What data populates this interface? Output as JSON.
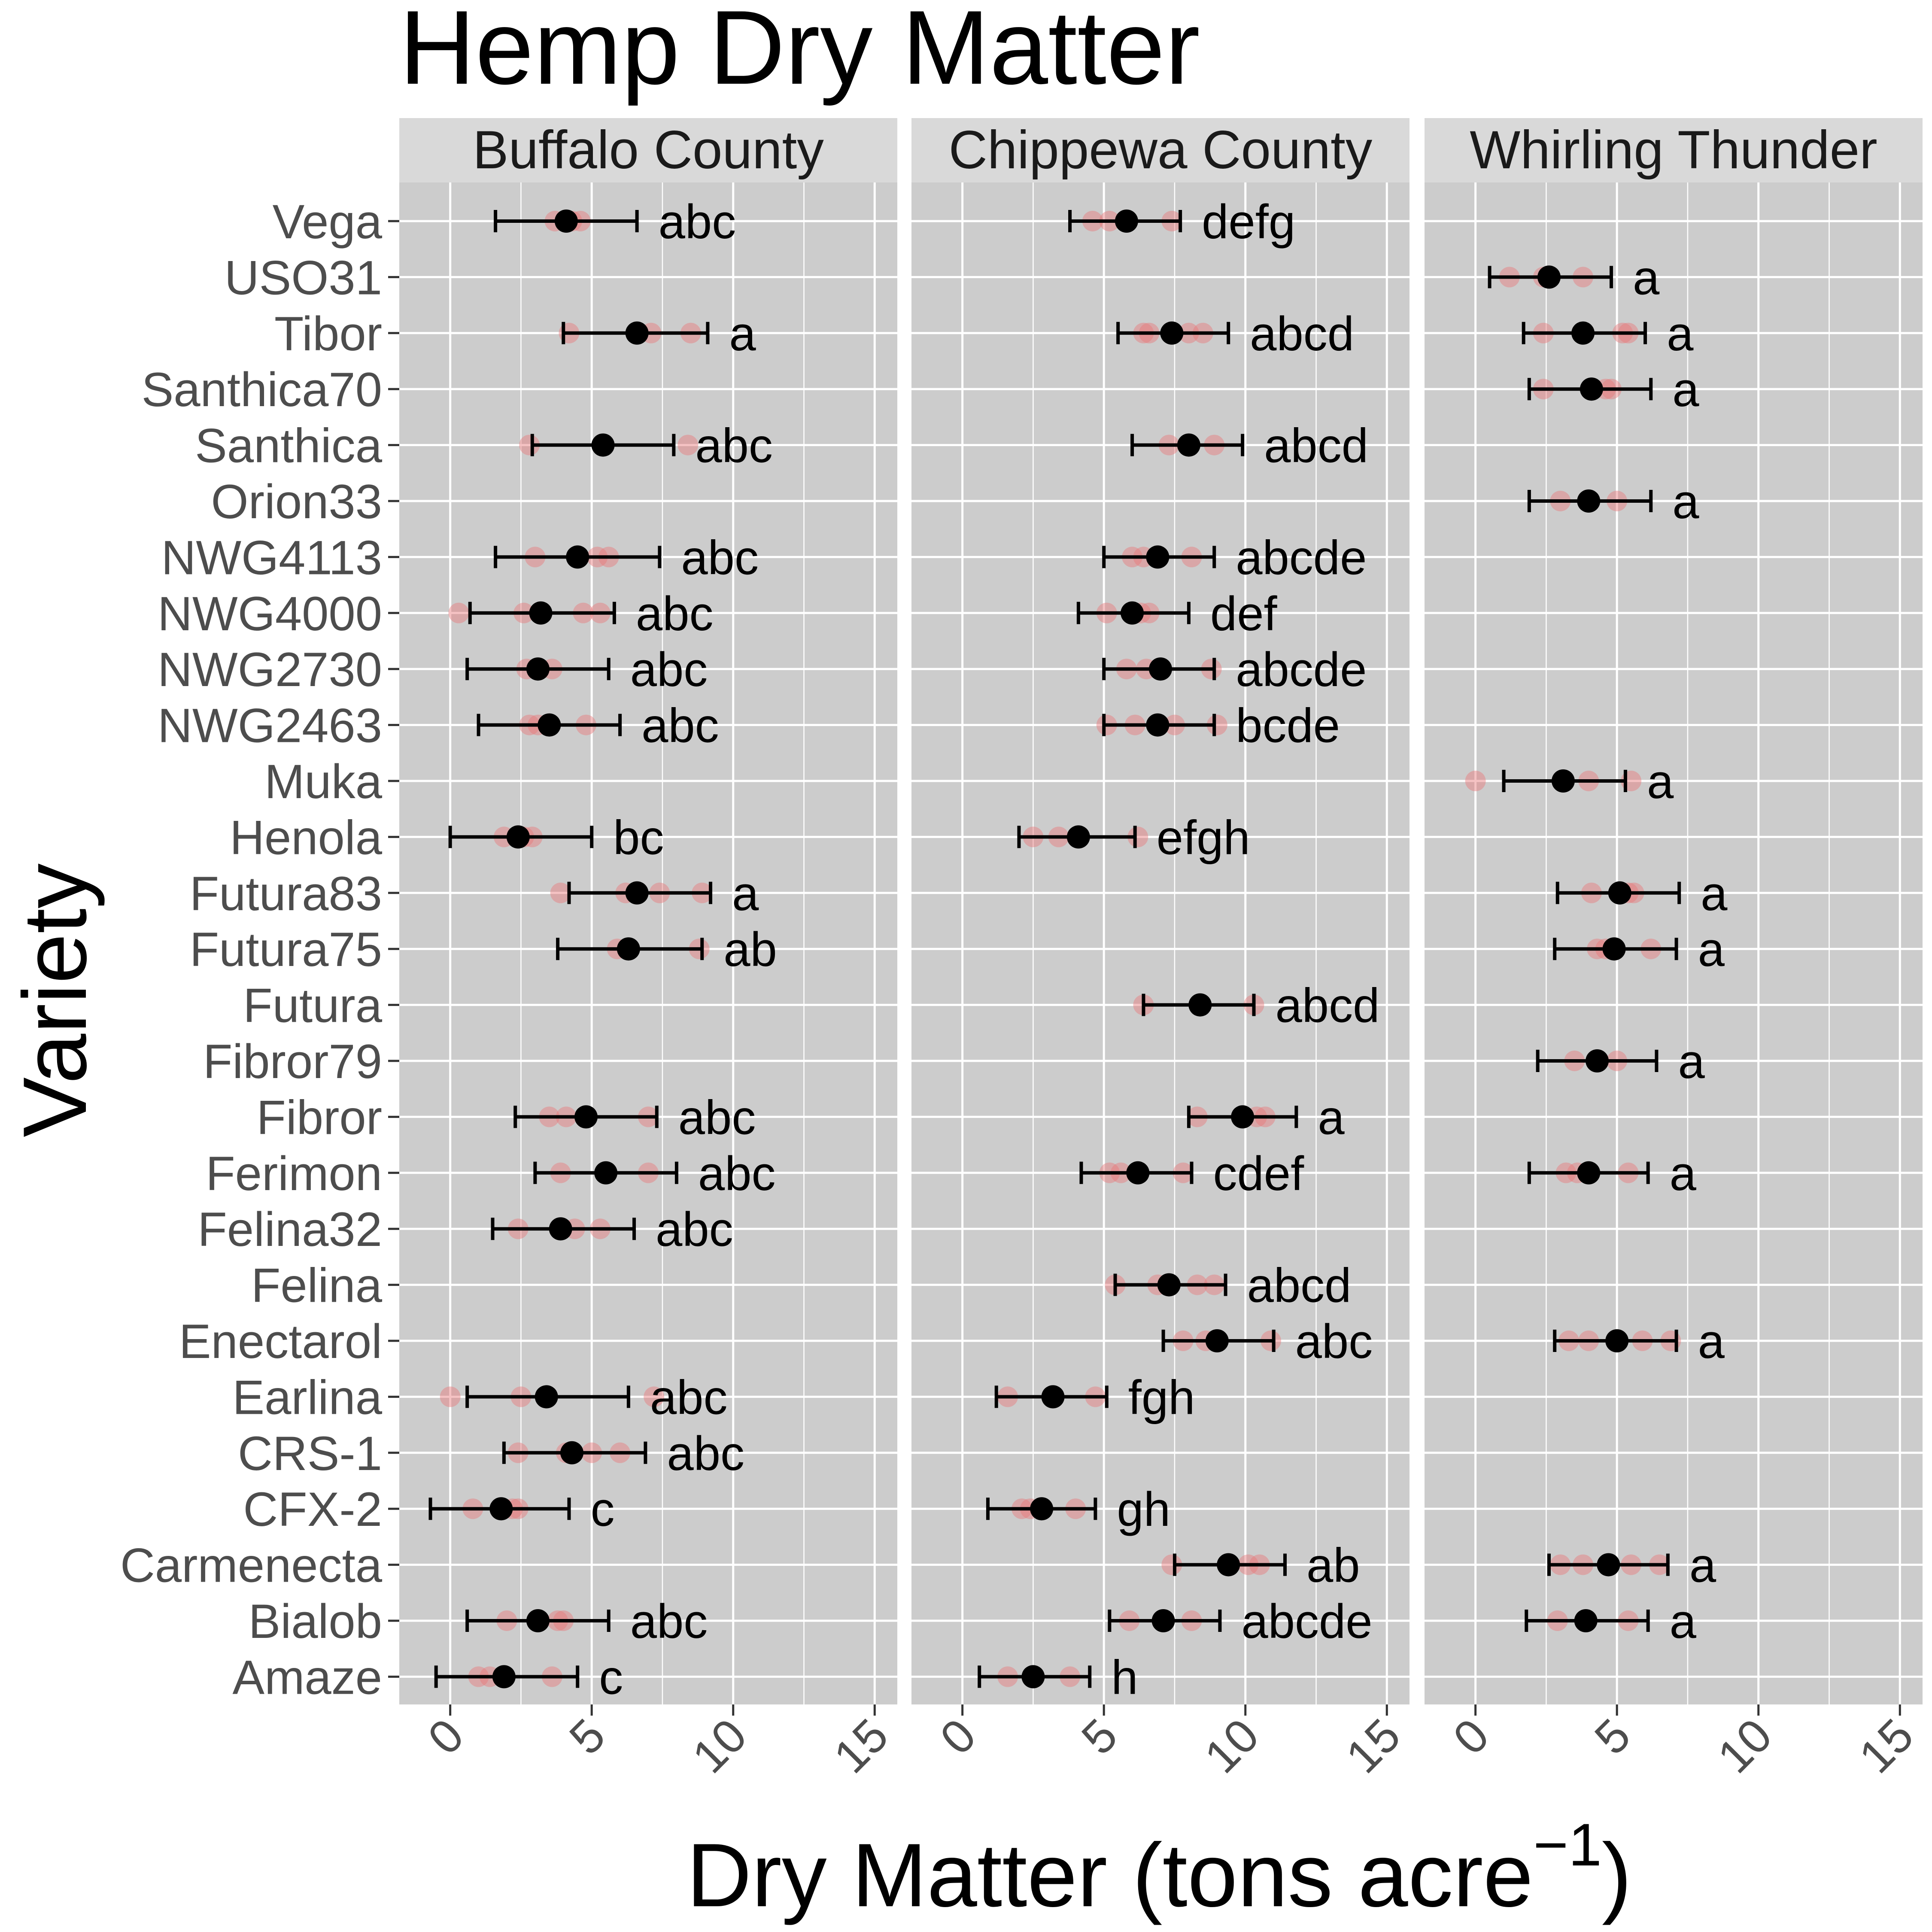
{
  "chart_data": {
    "type": "scatter",
    "title": "Hemp Dry Matter",
    "xlabel": "Dry Matter (tons acre",
    "xlabel_superscript": "−1",
    "xlabel_close": ")",
    "ylabel": "Variety",
    "xlim": [
      -1.8,
      15.8
    ],
    "x_ticks": [
      0,
      5,
      10,
      15
    ],
    "grid": true,
    "colors": {
      "panel_bg": "#cccccc",
      "strip_bg": "#d9d9d9",
      "grid": "#ffffff",
      "mean_point": "#000000",
      "replicate_point": "#e8787a"
    },
    "categories": [
      "Vega",
      "USO31",
      "Tibor",
      "Santhica70",
      "Santhica",
      "Orion33",
      "NWG4113",
      "NWG4000",
      "NWG2730",
      "NWG2463",
      "Muka",
      "Henola",
      "Futura83",
      "Futura75",
      "Futura",
      "Fibror79",
      "Fibror",
      "Ferimon",
      "Felina32",
      "Felina",
      "Enectarol",
      "Earlina",
      "CRS-1",
      "CFX-2",
      "Carmenecta",
      "Bialob",
      "Amaze"
    ],
    "panels": [
      {
        "name": "Buffalo County",
        "entries": [
          {
            "variety": "Vega",
            "mean": 4.1,
            "low": 1.6,
            "high": 6.6,
            "letters": "abc",
            "reps": [
              3.7,
              4.3,
              4.6
            ]
          },
          {
            "variety": "Tibor",
            "mean": 6.6,
            "low": 4.0,
            "high": 9.1,
            "letters": "a",
            "reps": [
              4.2,
              7.1,
              8.5
            ]
          },
          {
            "variety": "Santhica",
            "mean": 5.4,
            "low": 2.9,
            "high": 7.9,
            "letters": "abc",
            "reps": [
              2.8,
              8.4
            ]
          },
          {
            "variety": "NWG4113",
            "mean": 4.5,
            "low": 1.6,
            "high": 7.4,
            "letters": "abc",
            "reps": [
              3.0,
              5.2,
              5.6
            ]
          },
          {
            "variety": "NWG4000",
            "mean": 3.2,
            "low": 0.7,
            "high": 5.8,
            "letters": "abc",
            "reps": [
              0.3,
              2.6,
              4.7,
              5.3
            ]
          },
          {
            "variety": "NWG2730",
            "mean": 3.1,
            "low": 0.6,
            "high": 5.6,
            "letters": "abc",
            "reps": [
              2.7,
              3.6
            ]
          },
          {
            "variety": "NWG2463",
            "mean": 3.5,
            "low": 1.0,
            "high": 6.0,
            "letters": "abc",
            "reps": [
              2.8,
              3.1,
              4.8
            ]
          },
          {
            "variety": "Henola",
            "mean": 2.4,
            "low": 0.0,
            "high": 5.0,
            "letters": "bc",
            "reps": [
              1.9,
              2.6,
              2.9
            ]
          },
          {
            "variety": "Futura83",
            "mean": 6.6,
            "low": 4.2,
            "high": 9.2,
            "letters": "a",
            "reps": [
              3.9,
              6.2,
              7.4,
              8.9
            ]
          },
          {
            "variety": "Futura75",
            "mean": 6.3,
            "low": 3.8,
            "high": 8.9,
            "letters": "ab",
            "reps": [
              5.9,
              8.8
            ]
          },
          {
            "variety": "Fibror",
            "mean": 4.8,
            "low": 2.3,
            "high": 7.3,
            "letters": "abc",
            "reps": [
              3.5,
              4.1,
              7.0
            ]
          },
          {
            "variety": "Ferimon",
            "mean": 5.5,
            "low": 3.0,
            "high": 8.0,
            "letters": "abc",
            "reps": [
              3.9,
              7.0
            ]
          },
          {
            "variety": "Felina32",
            "mean": 3.9,
            "low": 1.5,
            "high": 6.5,
            "letters": "abc",
            "reps": [
              2.4,
              4.4,
              5.3
            ]
          },
          {
            "variety": "Earlina",
            "mean": 3.4,
            "low": 0.6,
            "high": 6.3,
            "letters": "abc",
            "reps": [
              0.0,
              2.5,
              7.2
            ]
          },
          {
            "variety": "CRS-1",
            "mean": 4.3,
            "low": 1.9,
            "high": 6.9,
            "letters": "abc",
            "reps": [
              2.4,
              4.1,
              5.0,
              6.0
            ]
          },
          {
            "variety": "CFX-2",
            "mean": 1.8,
            "low": -0.7,
            "high": 4.2,
            "letters": "c",
            "reps": [
              0.8,
              2.2,
              2.4
            ]
          },
          {
            "variety": "Bialob",
            "mean": 3.1,
            "low": 0.6,
            "high": 5.6,
            "letters": "abc",
            "reps": [
              2.0,
              3.8,
              4.0
            ]
          },
          {
            "variety": "Amaze",
            "mean": 1.9,
            "low": -0.5,
            "high": 4.5,
            "letters": "c",
            "reps": [
              1.0,
              1.4,
              3.6
            ]
          }
        ]
      },
      {
        "name": "Chippewa County",
        "entries": [
          {
            "variety": "Vega",
            "mean": 5.8,
            "low": 3.8,
            "high": 7.7,
            "letters": "defg",
            "reps": [
              4.6,
              5.2,
              7.4
            ]
          },
          {
            "variety": "Tibor",
            "mean": 7.4,
            "low": 5.5,
            "high": 9.4,
            "letters": "abcd",
            "reps": [
              6.4,
              6.6,
              8.0,
              8.5
            ]
          },
          {
            "variety": "Santhica",
            "mean": 8.0,
            "low": 6.0,
            "high": 9.9,
            "letters": "abcd",
            "reps": [
              7.3,
              8.9
            ]
          },
          {
            "variety": "NWG4113",
            "mean": 6.9,
            "low": 5.0,
            "high": 8.9,
            "letters": "abcde",
            "reps": [
              6.0,
              6.4,
              8.1
            ]
          },
          {
            "variety": "NWG4000",
            "mean": 6.0,
            "low": 4.1,
            "high": 8.0,
            "letters": "def",
            "reps": [
              5.1,
              6.3,
              6.6
            ]
          },
          {
            "variety": "NWG2730",
            "mean": 7.0,
            "low": 5.0,
            "high": 8.9,
            "letters": "abcde",
            "reps": [
              5.8,
              6.5,
              8.8
            ]
          },
          {
            "variety": "NWG2463",
            "mean": 6.9,
            "low": 5.0,
            "high": 8.9,
            "letters": "bcde",
            "reps": [
              5.1,
              6.1,
              7.5,
              9.0
            ]
          },
          {
            "variety": "Henola",
            "mean": 4.1,
            "low": 2.0,
            "high": 6.1,
            "letters": "efgh",
            "reps": [
              2.5,
              3.4,
              6.2
            ]
          },
          {
            "variety": "Futura",
            "mean": 8.4,
            "low": 6.4,
            "high": 10.3,
            "letters": "abcd",
            "reps": [
              6.4,
              10.3
            ]
          },
          {
            "variety": "Fibror",
            "mean": 9.9,
            "low": 8.0,
            "high": 11.8,
            "letters": "a",
            "reps": [
              8.3,
              10.4,
              10.7
            ]
          },
          {
            "variety": "Ferimon",
            "mean": 6.2,
            "low": 4.2,
            "high": 8.1,
            "letters": "cdef",
            "reps": [
              5.2,
              5.6,
              7.8
            ]
          },
          {
            "variety": "Felina",
            "mean": 7.3,
            "low": 5.4,
            "high": 9.3,
            "letters": "abcd",
            "reps": [
              5.4,
              6.9,
              8.3,
              8.9
            ]
          },
          {
            "variety": "Enectarol",
            "mean": 9.0,
            "low": 7.1,
            "high": 11.0,
            "letters": "abc",
            "reps": [
              7.8,
              8.6,
              10.9
            ]
          },
          {
            "variety": "Earlina",
            "mean": 3.2,
            "low": 1.2,
            "high": 5.1,
            "letters": "fgh",
            "reps": [
              1.6,
              4.7
            ]
          },
          {
            "variety": "CFX-2",
            "mean": 2.8,
            "low": 0.9,
            "high": 4.7,
            "letters": "gh",
            "reps": [
              2.1,
              2.4,
              4.0
            ]
          },
          {
            "variety": "Carmenecta",
            "mean": 9.4,
            "low": 7.5,
            "high": 11.4,
            "letters": "ab",
            "reps": [
              7.4,
              10.1,
              10.5
            ]
          },
          {
            "variety": "Bialob",
            "mean": 7.1,
            "low": 5.2,
            "high": 9.1,
            "letters": "abcde",
            "reps": [
              5.9,
              8.1
            ]
          },
          {
            "variety": "Amaze",
            "mean": 2.5,
            "low": 0.6,
            "high": 4.5,
            "letters": "h",
            "reps": [
              1.6,
              3.8
            ]
          }
        ]
      },
      {
        "name": "Whirling Thunder",
        "entries": [
          {
            "variety": "USO31",
            "mean": 2.6,
            "low": 0.5,
            "high": 4.8,
            "letters": "a",
            "reps": [
              1.2,
              2.4,
              3.8
            ]
          },
          {
            "variety": "Tibor",
            "mean": 3.8,
            "low": 1.7,
            "high": 6.0,
            "letters": "a",
            "reps": [
              2.4,
              5.2,
              5.4
            ]
          },
          {
            "variety": "Santhica70",
            "mean": 4.1,
            "low": 1.9,
            "high": 6.2,
            "letters": "a",
            "reps": [
              2.4,
              4.6,
              4.8
            ]
          },
          {
            "variety": "Orion33",
            "mean": 4.0,
            "low": 1.9,
            "high": 6.2,
            "letters": "a",
            "reps": [
              3.0,
              5.0
            ]
          },
          {
            "variety": "Muka",
            "mean": 3.1,
            "low": 1.0,
            "high": 5.3,
            "letters": "a",
            "reps": [
              0.0,
              4.0,
              5.5
            ]
          },
          {
            "variety": "Futura83",
            "mean": 5.1,
            "low": 2.9,
            "high": 7.2,
            "letters": "a",
            "reps": [
              4.1,
              5.4,
              5.6
            ]
          },
          {
            "variety": "Futura75",
            "mean": 4.9,
            "low": 2.8,
            "high": 7.1,
            "letters": "a",
            "reps": [
              4.3,
              4.6,
              6.2
            ]
          },
          {
            "variety": "Fibror79",
            "mean": 4.3,
            "low": 2.2,
            "high": 6.4,
            "letters": "a",
            "reps": [
              3.5,
              5.0
            ]
          },
          {
            "variety": "Ferimon",
            "mean": 4.0,
            "low": 1.9,
            "high": 6.1,
            "letters": "a",
            "reps": [
              3.2,
              3.6,
              5.4
            ]
          },
          {
            "variety": "Enectarol",
            "mean": 5.0,
            "low": 2.8,
            "high": 7.1,
            "letters": "a",
            "reps": [
              3.3,
              4.0,
              5.9,
              6.9
            ]
          },
          {
            "variety": "Carmenecta",
            "mean": 4.7,
            "low": 2.6,
            "high": 6.8,
            "letters": "a",
            "reps": [
              3.0,
              3.8,
              5.5,
              6.5
            ]
          },
          {
            "variety": "Bialob",
            "mean": 3.9,
            "low": 1.8,
            "high": 6.1,
            "letters": "a",
            "reps": [
              2.9,
              5.4
            ]
          }
        ]
      }
    ]
  }
}
